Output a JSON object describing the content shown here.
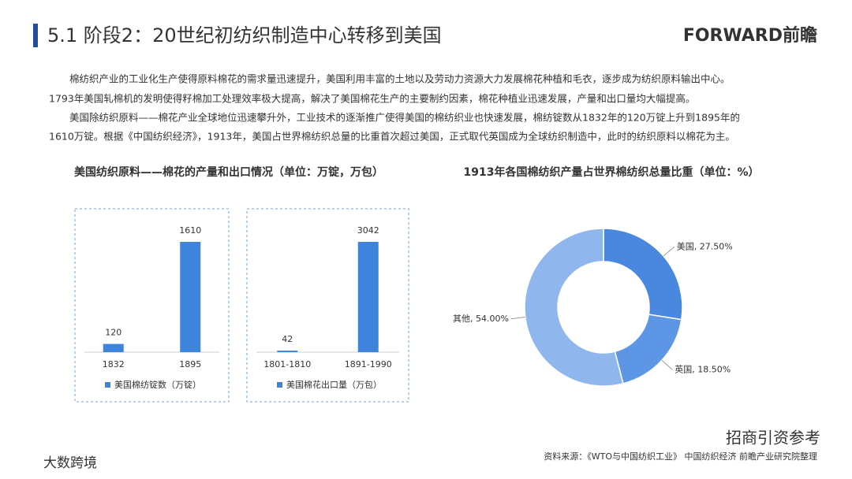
{
  "header": {
    "title": "5.1 阶段2：20世纪初纺织制造中心转移到美国",
    "logo": "FORWARD前瞻"
  },
  "paragraphs": [
    "棉纺织产业的工业化生产使得原料棉花的需求量迅速提升，美国利用丰富的土地以及劳动力资源大力发展棉花种植和毛衣，逐步成为纺织原料输出中心。",
    "1793年美国轧棉机的发明使得籽棉加工处理效率极大提高，解决了美国棉花生产的主要制约因素，棉花种植业迅速发展，产量和出口量均大幅提高。",
    "美国除纺织原料——棉花产业全球地位迅速攀升外，工业技术的逐渐推广使得美国的棉纺织业也快速发展，棉纺锭数从1832年的120万锭上升到1895年的",
    "1610万锭。根据《中国纺织经济》，1913年，美国占世界棉纺织总量的比重首次超过美国，正式取代英国成为全球纺织制造中，此时的纺织原料以棉花为主。"
  ],
  "chart_data": [
    {
      "type": "bar",
      "title": "美国纺织原料——棉花的产量和出口情况（单位：万锭，万包）",
      "categories": [
        "1832",
        "1895"
      ],
      "series": [
        {
          "name": "美国棉纺锭数（万锭）",
          "color": "#3f84dc",
          "values": [
            120,
            1610
          ]
        }
      ]
    },
    {
      "type": "bar",
      "categories": [
        "1801-1810",
        "1891-1990"
      ],
      "series": [
        {
          "name": "美国棉花出口量（万包）",
          "color": "#3f84dc",
          "values": [
            42,
            3042
          ]
        }
      ]
    },
    {
      "type": "pie",
      "title": "1913年各国棉纺织产量占世界棉纺织总量比重（单位：%）",
      "values": [
        27.5,
        18.5,
        54.0
      ],
      "value_labels": [
        "美国, 27.50%",
        "英国, 18.50%",
        "其他, 54.00%"
      ],
      "colors": [
        "#4a87df",
        "#5c96e4",
        "#8fb7ee"
      ]
    }
  ],
  "source": "资料来源：《WTO与中国纺织工业》 中国纺织经济 前瞻产业研究院整理",
  "watermarks": [
    "招商引资参考",
    "大数跨境"
  ]
}
